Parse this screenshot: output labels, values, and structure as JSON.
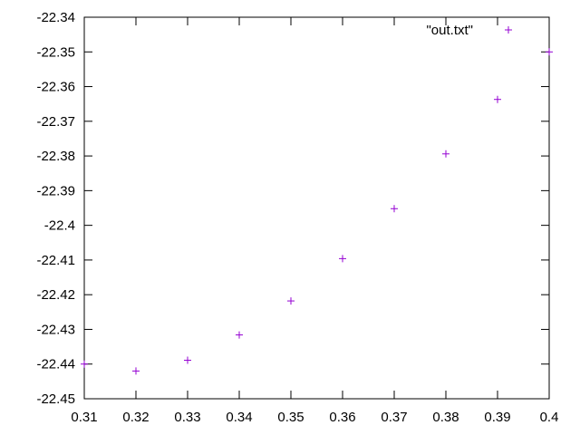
{
  "chart_data": {
    "type": "scatter",
    "title": "",
    "xlabel": "",
    "ylabel": "",
    "xlim": [
      0.31,
      0.4
    ],
    "ylim": [
      -22.45,
      -22.34
    ],
    "x_ticks": [
      "0.31",
      "0.32",
      "0.33",
      "0.34",
      "0.35",
      "0.36",
      "0.37",
      "0.38",
      "0.39",
      "0.4"
    ],
    "y_ticks": [
      "-22.34",
      "-22.35",
      "-22.36",
      "-22.37",
      "-22.38",
      "-22.39",
      "-22.4",
      "-22.41",
      "-22.42",
      "-22.43",
      "-22.44",
      "-22.45"
    ],
    "grid": false,
    "legend_position": "top-right",
    "series": [
      {
        "name": "\"out.txt\"",
        "color": "#9400d3",
        "marker": "plus",
        "x": [
          0.31,
          0.32,
          0.33,
          0.34,
          0.35,
          0.36,
          0.37,
          0.38,
          0.39,
          0.4
        ],
        "y": [
          -22.44,
          -22.442,
          -22.4389,
          -22.4316,
          -22.4218,
          -22.4096,
          -22.3952,
          -22.3794,
          -22.3637,
          -22.35
        ]
      }
    ]
  }
}
